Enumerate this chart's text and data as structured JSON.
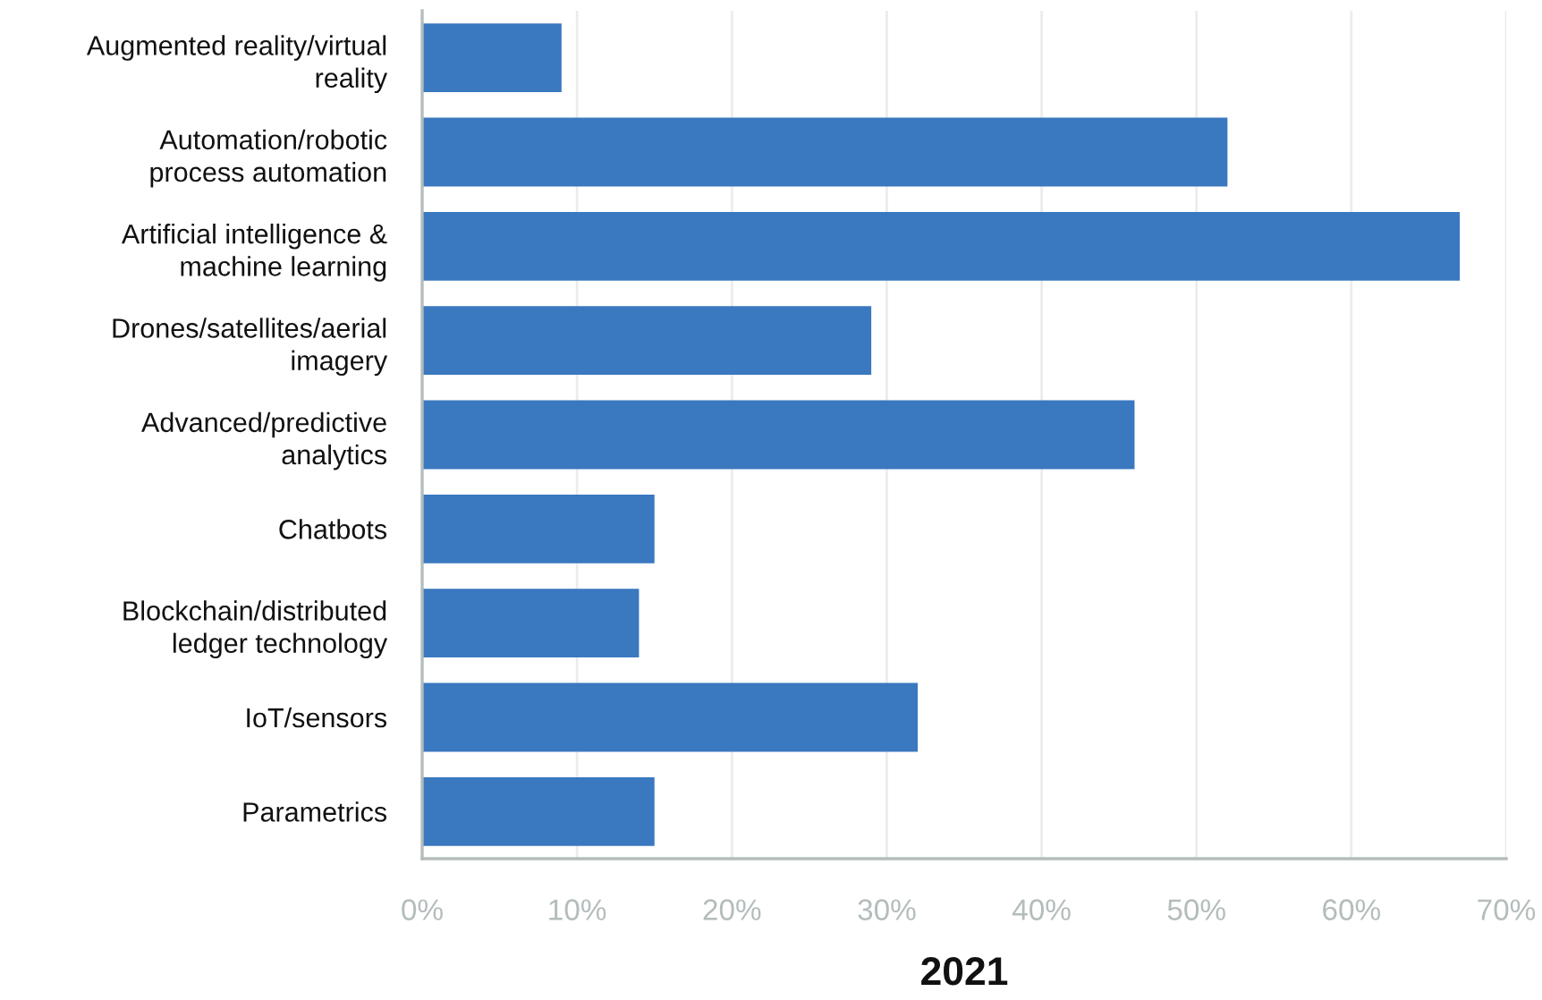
{
  "chart_data": {
    "type": "bar",
    "orientation": "horizontal",
    "xlabel": "2021",
    "categories": [
      "Augmented reality/virtual\nreality",
      "Automation/robotic\nprocess automation",
      "Artificial intelligence &\nmachine learning",
      "Drones/satellites/aerial\nimagery",
      "Advanced/predictive\nanalytics",
      "Chatbots",
      "Blockchain/distributed\nledger technology",
      "IoT/sensors",
      "Parametrics"
    ],
    "values": [
      9,
      52,
      67,
      29,
      46,
      15,
      14,
      32,
      15
    ],
    "color": "#3a78c0",
    "xlim": [
      0,
      70
    ],
    "xticks": [
      {
        "value": 0,
        "label": "0%"
      },
      {
        "value": 10,
        "label": "10%"
      },
      {
        "value": 20,
        "label": "20%"
      },
      {
        "value": 30,
        "label": "30%"
      },
      {
        "value": 40,
        "label": "40%"
      },
      {
        "value": 50,
        "label": "50%"
      },
      {
        "value": 60,
        "label": "60%"
      },
      {
        "value": 70,
        "label": "70%"
      }
    ],
    "grid": "x",
    "legend": false
  }
}
